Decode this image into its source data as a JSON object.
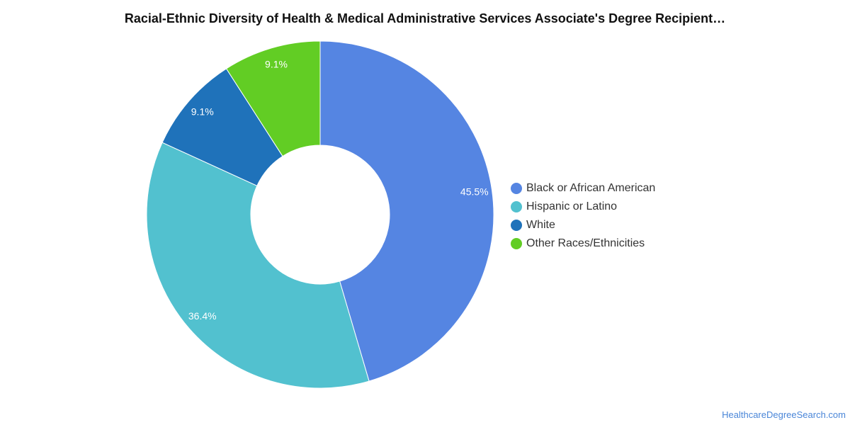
{
  "chart_data": {
    "type": "pie",
    "title": "Racial-Ethnic Diversity of Health & Medical Administrative Services Associate's Degree Recipient…",
    "donut": true,
    "legend_position": "right",
    "slices": [
      {
        "label": "Black or African American",
        "value": 45.5,
        "display": "45.5%",
        "color": "#5585e2"
      },
      {
        "label": "Hispanic or Latino",
        "value": 36.4,
        "display": "36.4%",
        "color": "#52c1cf"
      },
      {
        "label": "White",
        "value": 9.1,
        "display": "9.1%",
        "color": "#1f72ba"
      },
      {
        "label": "Other Races/Ethnicities",
        "value": 9.1,
        "display": "9.1%",
        "color": "#62cd24"
      }
    ]
  },
  "source": "HealthcareDegreeSearch.com"
}
